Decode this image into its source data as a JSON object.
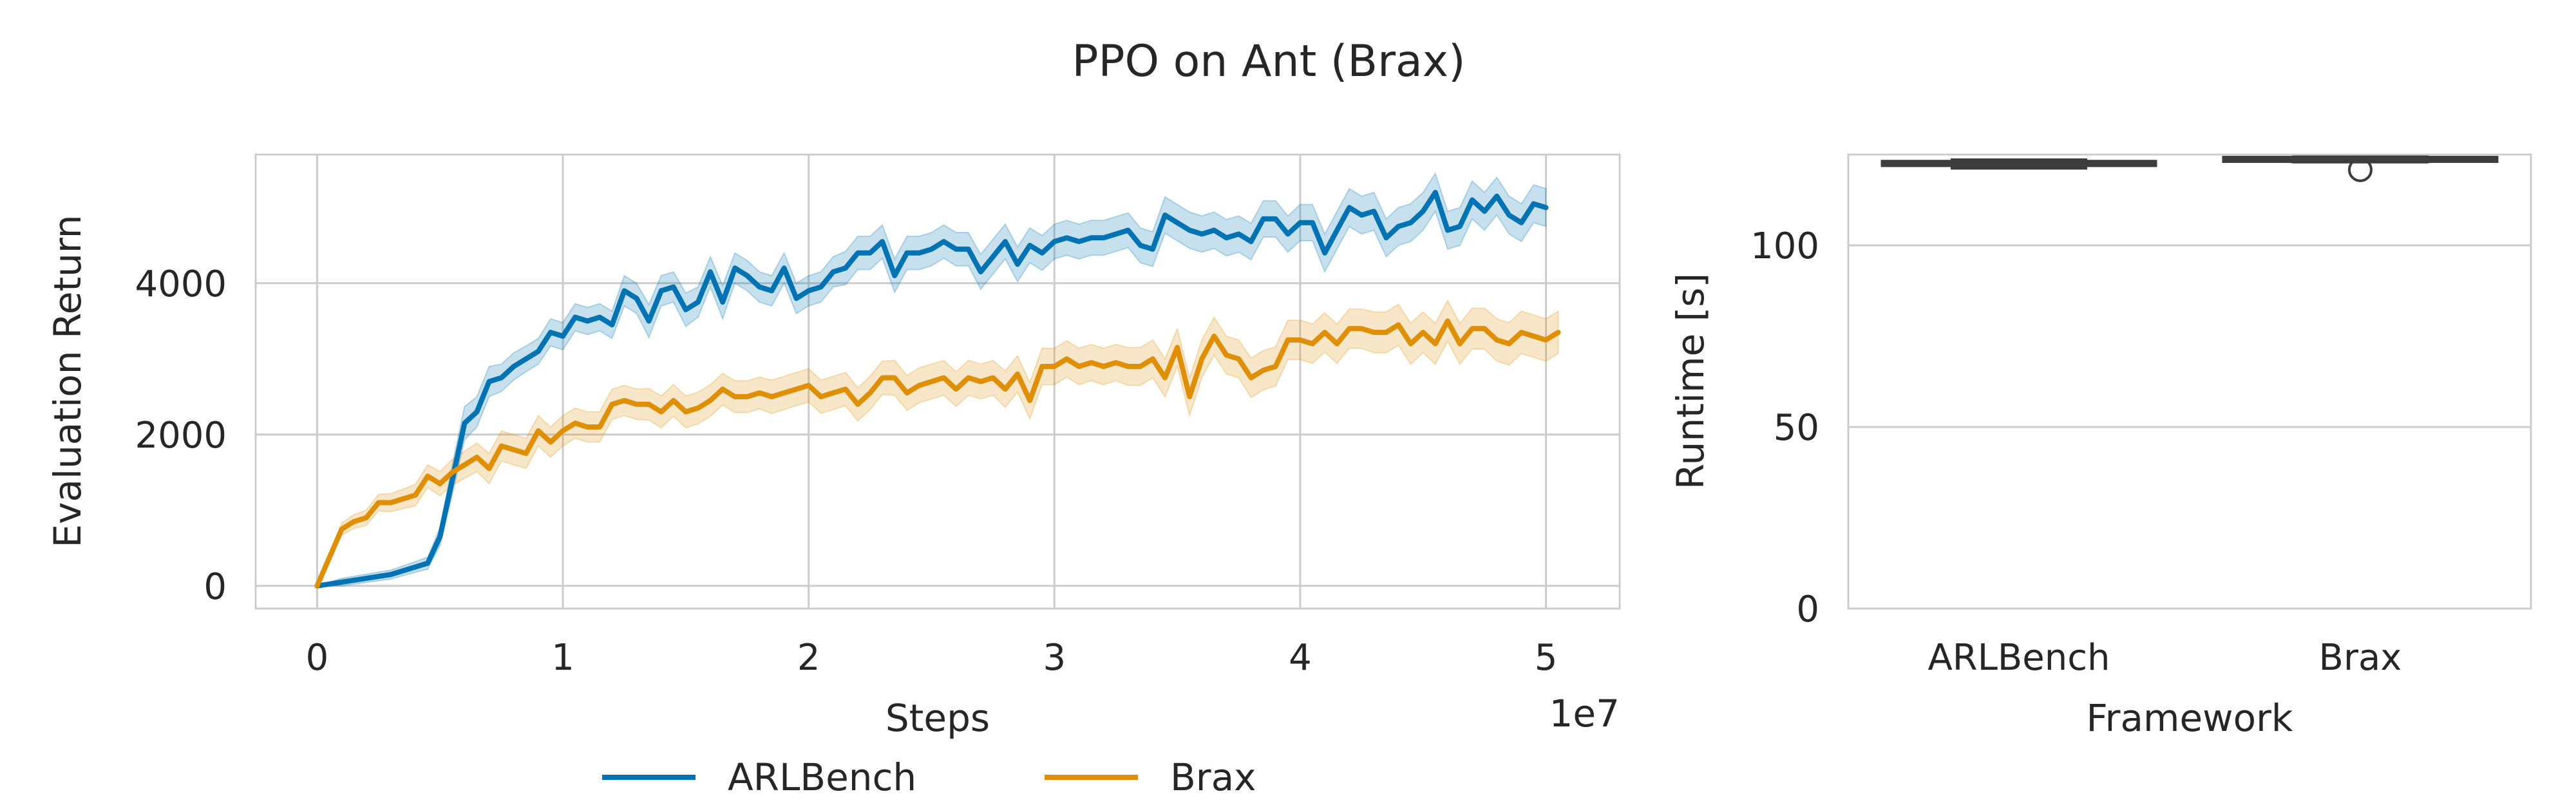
{
  "suptitle": "PPO on Ant (Brax)",
  "chart_data": [
    {
      "type": "line",
      "xlabel": "Steps",
      "ylabel": "Evaluation Return",
      "x_offset_label": "1e7",
      "xlim": [
        -0.25,
        5.3
      ],
      "ylim": [
        -300,
        5700
      ],
      "xticks": [
        0,
        1,
        2,
        3,
        4,
        5
      ],
      "yticks": [
        0,
        2000,
        4000
      ],
      "grid": true,
      "legend_position": "bottom-center",
      "series": [
        {
          "name": "ARLBench",
          "color": "#0173B2",
          "x": [
            0,
            0.1,
            0.3,
            0.4,
            0.45,
            0.5,
            0.55,
            0.6,
            0.65,
            0.7,
            0.75,
            0.8,
            0.85,
            0.9,
            0.95,
            1.0,
            1.05,
            1.1,
            1.15,
            1.2,
            1.25,
            1.3,
            1.35,
            1.4,
            1.45,
            1.5,
            1.55,
            1.6,
            1.65,
            1.7,
            1.75,
            1.8,
            1.85,
            1.9,
            1.95,
            2.0,
            2.05,
            2.1,
            2.15,
            2.2,
            2.25,
            2.3,
            2.35,
            2.4,
            2.45,
            2.5,
            2.55,
            2.6,
            2.65,
            2.7,
            2.75,
            2.8,
            2.85,
            2.9,
            2.95,
            3.0,
            3.05,
            3.1,
            3.15,
            3.2,
            3.25,
            3.3,
            3.35,
            3.4,
            3.45,
            3.5,
            3.55,
            3.6,
            3.65,
            3.7,
            3.75,
            3.8,
            3.85,
            3.9,
            3.95,
            4.0,
            4.05,
            4.1,
            4.15,
            4.2,
            4.25,
            4.3,
            4.35,
            4.4,
            4.45,
            4.5,
            4.55,
            4.6,
            4.65,
            4.7,
            4.75,
            4.8,
            4.85,
            4.9,
            4.95,
            5.0
          ],
          "y": [
            0,
            50,
            150,
            250,
            300,
            650,
            1400,
            2150,
            2300,
            2700,
            2750,
            2900,
            3000,
            3100,
            3350,
            3300,
            3550,
            3500,
            3550,
            3450,
            3900,
            3800,
            3500,
            3900,
            3950,
            3650,
            3750,
            4150,
            3750,
            4200,
            4100,
            3950,
            3900,
            4200,
            3800,
            3900,
            3950,
            4150,
            4200,
            4400,
            4400,
            4550,
            4100,
            4400,
            4400,
            4450,
            4550,
            4450,
            4450,
            4150,
            4350,
            4550,
            4250,
            4500,
            4400,
            4550,
            4600,
            4550,
            4600,
            4600,
            4650,
            4700,
            4500,
            4450,
            4900,
            4800,
            4700,
            4650,
            4700,
            4600,
            4650,
            4550,
            4850,
            4850,
            4650,
            4800,
            4800,
            4400,
            4700,
            5000,
            4900,
            4950,
            4600,
            4750,
            4800,
            4950,
            5200,
            4700,
            4750,
            5100,
            4950,
            5150,
            4900,
            4800,
            5050,
            5000
          ],
          "band_halfwidth": [
            0,
            50,
            60,
            70,
            80,
            120,
            200,
            220,
            200,
            200,
            180,
            180,
            170,
            170,
            180,
            180,
            180,
            180,
            180,
            180,
            200,
            200,
            220,
            200,
            200,
            220,
            200,
            200,
            220,
            200,
            200,
            200,
            200,
            200,
            200,
            200,
            200,
            200,
            220,
            220,
            220,
            220,
            220,
            220,
            220,
            220,
            220,
            220,
            220,
            230,
            230,
            230,
            230,
            230,
            230,
            230,
            230,
            230,
            230,
            230,
            230,
            230,
            230,
            230,
            240,
            240,
            240,
            240,
            240,
            240,
            240,
            240,
            240,
            240,
            240,
            240,
            240,
            250,
            250,
            250,
            250,
            250,
            250,
            250,
            250,
            250,
            250,
            250,
            250,
            250,
            250,
            250,
            250,
            250,
            250,
            250
          ]
        },
        {
          "name": "Brax",
          "color": "#DE8F05",
          "x": [
            0,
            0.1,
            0.15,
            0.2,
            0.25,
            0.3,
            0.35,
            0.4,
            0.45,
            0.5,
            0.55,
            0.6,
            0.65,
            0.7,
            0.75,
            0.8,
            0.85,
            0.9,
            0.95,
            1.0,
            1.05,
            1.1,
            1.15,
            1.2,
            1.25,
            1.3,
            1.35,
            1.4,
            1.45,
            1.5,
            1.55,
            1.6,
            1.65,
            1.7,
            1.75,
            1.8,
            1.85,
            1.9,
            1.95,
            2.0,
            2.05,
            2.1,
            2.15,
            2.2,
            2.25,
            2.3,
            2.35,
            2.4,
            2.45,
            2.5,
            2.55,
            2.6,
            2.65,
            2.7,
            2.75,
            2.8,
            2.85,
            2.9,
            2.95,
            3.0,
            3.05,
            3.1,
            3.15,
            3.2,
            3.25,
            3.3,
            3.35,
            3.4,
            3.45,
            3.5,
            3.55,
            3.6,
            3.65,
            3.7,
            3.75,
            3.8,
            3.85,
            3.9,
            3.95,
            4.0,
            4.05,
            4.1,
            4.15,
            4.2,
            4.25,
            4.3,
            4.35,
            4.4,
            4.45,
            4.5,
            4.55,
            4.6,
            4.65,
            4.7,
            4.75,
            4.8,
            4.85,
            4.9,
            4.95,
            5.0,
            5.05
          ],
          "y": [
            0,
            750,
            850,
            900,
            1100,
            1100,
            1150,
            1200,
            1450,
            1350,
            1500,
            1600,
            1700,
            1550,
            1850,
            1800,
            1750,
            2050,
            1900,
            2050,
            2150,
            2100,
            2100,
            2400,
            2450,
            2400,
            2400,
            2300,
            2450,
            2300,
            2350,
            2450,
            2600,
            2500,
            2500,
            2550,
            2500,
            2550,
            2600,
            2650,
            2500,
            2550,
            2600,
            2400,
            2550,
            2750,
            2750,
            2550,
            2650,
            2700,
            2750,
            2600,
            2750,
            2700,
            2750,
            2600,
            2800,
            2450,
            2900,
            2900,
            3000,
            2900,
            2950,
            2900,
            2950,
            2900,
            2900,
            3000,
            2750,
            3150,
            2500,
            3000,
            3300,
            3050,
            3000,
            2750,
            2850,
            2900,
            3250,
            3250,
            3200,
            3350,
            3200,
            3400,
            3400,
            3350,
            3350,
            3450,
            3200,
            3350,
            3200,
            3500,
            3200,
            3400,
            3400,
            3250,
            3200,
            3350,
            3300,
            3250,
            3350
          ],
          "band_halfwidth": [
            0,
            80,
            90,
            100,
            110,
            120,
            130,
            140,
            150,
            160,
            170,
            180,
            190,
            200,
            200,
            200,
            200,
            200,
            200,
            200,
            200,
            200,
            200,
            200,
            200,
            200,
            210,
            210,
            210,
            210,
            210,
            210,
            210,
            210,
            210,
            210,
            220,
            220,
            220,
            220,
            220,
            220,
            220,
            220,
            220,
            220,
            230,
            230,
            230,
            230,
            230,
            230,
            230,
            230,
            230,
            240,
            240,
            240,
            240,
            240,
            240,
            240,
            240,
            240,
            240,
            250,
            250,
            250,
            250,
            250,
            250,
            250,
            250,
            250,
            250,
            260,
            260,
            260,
            260,
            260,
            260,
            260,
            260,
            260,
            260,
            270,
            270,
            270,
            270,
            270,
            270,
            270,
            270,
            270,
            270,
            280,
            280,
            280,
            280,
            280,
            280
          ]
        }
      ]
    },
    {
      "type": "box",
      "xlabel": "Framework",
      "ylabel": "Runtime [s]",
      "ylim": [
        0,
        125
      ],
      "yticks": [
        0,
        50,
        100
      ],
      "grid": true,
      "color": "#3d3d3d",
      "categories": [
        "ARLBench",
        "Brax"
      ],
      "boxes": [
        {
          "category": "ARLBench",
          "whislo": 121.3,
          "q1": 122.0,
          "median": 122.4,
          "q3": 123.1,
          "whishi": 123.5,
          "fliers": []
        },
        {
          "category": "Brax",
          "whislo": 123.0,
          "q1": 123.3,
          "median": 123.8,
          "q3": 124.2,
          "whishi": 124.5,
          "fliers": [
            120.8
          ]
        }
      ]
    }
  ]
}
